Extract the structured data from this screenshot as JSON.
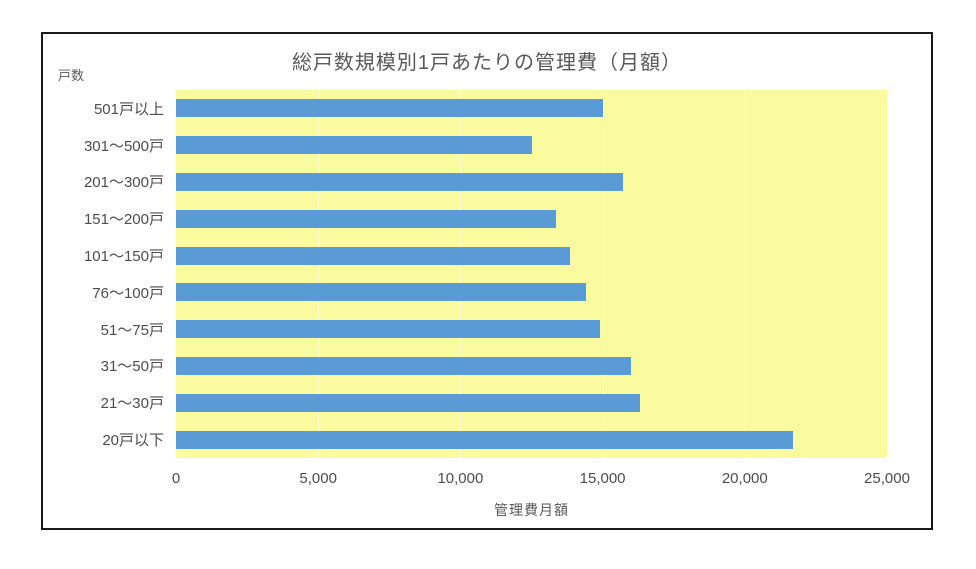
{
  "chart_data": {
    "type": "bar",
    "orientation": "horizontal",
    "title": "総戸数規模別1戸あたりの管理費（月額）",
    "ylabel": "戸数",
    "xlabel": "管理費月額",
    "categories": [
      "501戸以上",
      "301～500戸",
      "201～300戸",
      "151～200戸",
      "101～150戸",
      "76～100戸",
      "51～75戸",
      "31～50戸",
      "21～30戸",
      "20戸以下"
    ],
    "values": [
      15000,
      12500,
      15700,
      13350,
      13850,
      14400,
      14900,
      16000,
      16300,
      21700
    ],
    "xlim": [
      0,
      25000
    ],
    "xticks": [
      {
        "value": 0,
        "label": "0"
      },
      {
        "value": 5000,
        "label": "5,000"
      },
      {
        "value": 10000,
        "label": "10,000"
      },
      {
        "value": 15000,
        "label": "15,000"
      },
      {
        "value": 20000,
        "label": "20,000"
      },
      {
        "value": 25000,
        "label": "25,000"
      }
    ],
    "grid": "vertical",
    "legend": "none"
  },
  "colors": {
    "bar": "#5B9BD5",
    "plot_background": "#FAFA9E",
    "gridline": "#FDFDCE",
    "text": "#595959",
    "frame_border": "#1A1A1A",
    "page_background": "#FFFFFF"
  }
}
